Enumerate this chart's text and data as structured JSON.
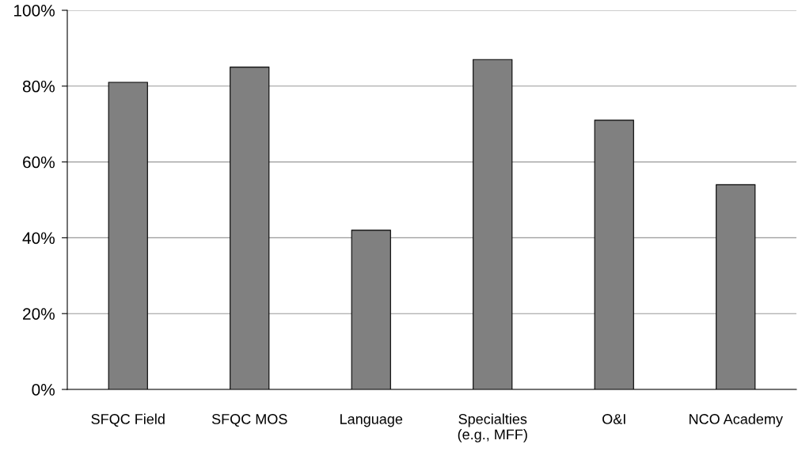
{
  "chart_data": {
    "type": "bar",
    "categories": [
      "SFQC Field",
      "SFQC MOS",
      "Language",
      "Specialties\n(e.g., MFF)",
      "O&I",
      "NCO Academy"
    ],
    "values": [
      81,
      85,
      42,
      87,
      71,
      54
    ],
    "color": "#808080",
    "ylim": [
      0,
      100
    ],
    "yticks": [
      {
        "value": 0,
        "label": "0%"
      },
      {
        "value": 20,
        "label": "20%"
      },
      {
        "value": 40,
        "label": "40%"
      },
      {
        "value": 60,
        "label": "60%"
      },
      {
        "value": 80,
        "label": "80%"
      },
      {
        "value": 100,
        "label": "100%"
      }
    ],
    "grid": "y",
    "legend": false
  }
}
